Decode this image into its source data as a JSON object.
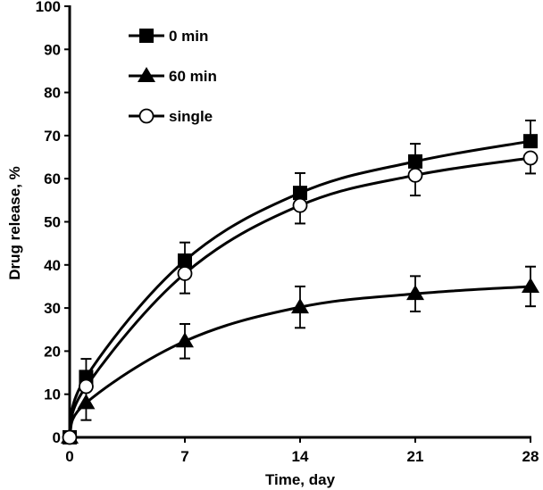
{
  "chart_data": {
    "type": "line",
    "title": "",
    "xlabel": "Time, day",
    "ylabel": "Drug release, %",
    "xlim": [
      0,
      28
    ],
    "ylim": [
      0,
      100
    ],
    "xticks": [
      0,
      7,
      14,
      21,
      28
    ],
    "yticks": [
      0,
      10,
      20,
      30,
      40,
      50,
      60,
      70,
      80,
      90,
      100
    ],
    "grid": false,
    "legend_position": "top-left",
    "series": [
      {
        "name": "0 min",
        "marker": "square-filled",
        "x": [
          0,
          1,
          7,
          14,
          21,
          28
        ],
        "y": [
          0,
          14,
          41,
          56.7,
          64,
          68.7
        ],
        "error": [
          0,
          4.2,
          4.2,
          4.6,
          4.1,
          4.8
        ],
        "error_direction": "up"
      },
      {
        "name": "60 min",
        "marker": "triangle-filled",
        "x": [
          0,
          1,
          7,
          14,
          21,
          28
        ],
        "y": [
          0,
          8,
          22.3,
          30.2,
          33.3,
          35
        ],
        "error": [
          0,
          4,
          4,
          4.8,
          4.1,
          4.6
        ],
        "error_direction": "both"
      },
      {
        "name": "single",
        "marker": "circle-open",
        "x": [
          0,
          1,
          7,
          14,
          21,
          28
        ],
        "y": [
          0,
          11.8,
          38,
          53.8,
          60.8,
          64.8
        ],
        "error": [
          0,
          0,
          4.6,
          4.2,
          4.7,
          3.6
        ],
        "error_direction": "down"
      }
    ]
  }
}
